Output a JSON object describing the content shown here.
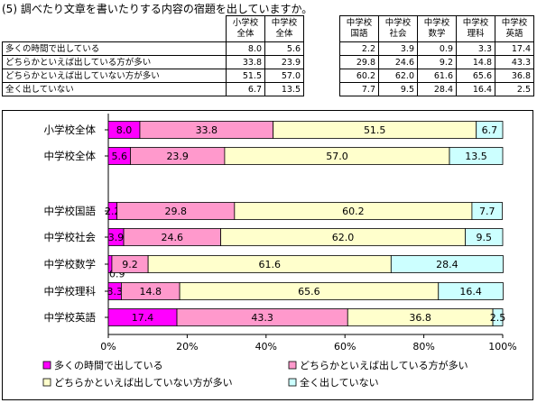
{
  "title": "(5) 調べたり文章を書いたりする内容の宿題を出していますか。",
  "colors": {
    "s1": "#ff00ff",
    "s2": "#ff99cc",
    "s3": "#ffffcc",
    "s4": "#ccffff",
    "grid": "#000000"
  },
  "table": {
    "headers": [
      [
        "小学校",
        "全体"
      ],
      [
        "中学校",
        "全体"
      ],
      [
        "中学校",
        "国語"
      ],
      [
        "中学校",
        "社会"
      ],
      [
        "中学校",
        "数学"
      ],
      [
        "中学校",
        "理科"
      ],
      [
        "中学校",
        "英語"
      ]
    ],
    "rows": [
      {
        "label": "多くの時間で出している",
        "values": [
          "8.0",
          "5.6",
          "2.2",
          "3.9",
          "0.9",
          "3.3",
          "17.4"
        ]
      },
      {
        "label": "どちらかといえば出している方が多い",
        "values": [
          "33.8",
          "23.9",
          "29.8",
          "24.6",
          "9.2",
          "14.8",
          "43.3"
        ]
      },
      {
        "label": "どちらかといえば出していない方が多い",
        "values": [
          "51.5",
          "57.0",
          "60.2",
          "62.0",
          "61.6",
          "65.6",
          "36.8"
        ]
      },
      {
        "label": "全く出していない",
        "values": [
          "6.7",
          "13.5",
          "7.7",
          "9.5",
          "28.4",
          "16.4",
          "2.5"
        ]
      }
    ]
  },
  "chart_data": {
    "type": "bar",
    "orientation": "horizontal",
    "stacked": "percent",
    "categories": [
      "小学校全体",
      "中学校全体",
      "中学校国語",
      "中学校社会",
      "中学校数学",
      "中学校理科",
      "中学校英語"
    ],
    "series": [
      {
        "name": "多くの時間で出している",
        "values": [
          8.0,
          5.6,
          2.2,
          3.9,
          0.9,
          3.3,
          17.4
        ]
      },
      {
        "name": "どちらかといえば出している方が多い",
        "values": [
          33.8,
          23.9,
          29.8,
          24.6,
          9.2,
          14.8,
          43.3
        ]
      },
      {
        "name": "どちらかといえば出していない方が多い",
        "values": [
          51.5,
          57.0,
          60.2,
          62.0,
          61.6,
          65.6,
          36.8
        ]
      },
      {
        "name": "全く出していない",
        "values": [
          6.7,
          13.5,
          7.7,
          9.5,
          28.4,
          16.4,
          2.5
        ]
      }
    ],
    "value_labels": [
      [
        "8.0",
        "5.6",
        "2.2",
        "3.9",
        "0.9",
        "3.3",
        "17.4"
      ],
      [
        "33.8",
        "23.9",
        "29.8",
        "24.6",
        "9.2",
        "14.8",
        "43.3"
      ],
      [
        "51.5",
        "57.0",
        "60.2",
        "62.0",
        "61.6",
        "65.6",
        "36.8"
      ],
      [
        "6.7",
        "13.5",
        "7.7",
        "9.5",
        "28.4",
        "16.4",
        "2.5"
      ]
    ],
    "xticks": [
      "0%",
      "20%",
      "40%",
      "60%",
      "80%",
      "100%"
    ],
    "xlim": [
      0,
      100
    ],
    "grid": false,
    "legend_position": "bottom"
  }
}
